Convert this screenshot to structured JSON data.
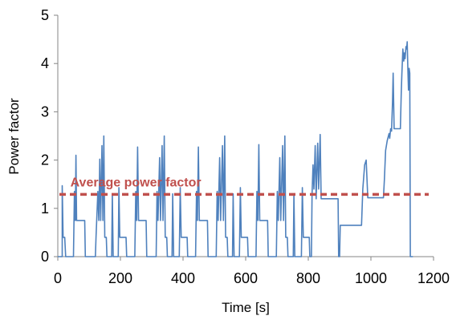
{
  "chart_data": {
    "type": "line",
    "title": "",
    "xlabel": "Time [s]",
    "ylabel": "Power factor",
    "xlim": [
      0,
      1200
    ],
    "ylim": [
      0,
      5
    ],
    "x_ticks": [
      0,
      200,
      400,
      600,
      800,
      1000,
      1200
    ],
    "y_ticks": [
      0,
      1,
      2,
      3,
      4,
      5
    ],
    "grid": false,
    "legend": "none",
    "colors": {
      "series": "#4f81bd",
      "average": "#c0504d"
    },
    "series": [
      {
        "points": [
          [
            0,
            0
          ],
          [
            14,
            0
          ],
          [
            14,
            1.47
          ],
          [
            17,
            0.4
          ],
          [
            22,
            0.4
          ],
          [
            25,
            0
          ],
          [
            50,
            0
          ],
          [
            53,
            1.35
          ],
          [
            56,
            0.75
          ],
          [
            58,
            2.1
          ],
          [
            60,
            0.75
          ],
          [
            86,
            0.75
          ],
          [
            88,
            0
          ],
          [
            120,
            0
          ],
          [
            122,
            0.4
          ],
          [
            128,
            1.35
          ],
          [
            131,
            0.75
          ],
          [
            134,
            2.02
          ],
          [
            137,
            0.75
          ],
          [
            141,
            2.3
          ],
          [
            144,
            0.75
          ],
          [
            147,
            2.5
          ],
          [
            150,
            0.4
          ],
          [
            155,
            0.4
          ],
          [
            157,
            0
          ],
          [
            172,
            0
          ],
          [
            174,
            1.3
          ],
          [
            177,
            0
          ],
          [
            193,
            0
          ],
          [
            195,
            1.43
          ],
          [
            198,
            0.4
          ],
          [
            218,
            0.4
          ],
          [
            220,
            0
          ],
          [
            246,
            0
          ],
          [
            249,
            1.35
          ],
          [
            252,
            0.75
          ],
          [
            255,
            2.27
          ],
          [
            258,
            0.75
          ],
          [
            282,
            0.75
          ],
          [
            284,
            0
          ],
          [
            314,
            0
          ],
          [
            317,
            1.35
          ],
          [
            320,
            0.75
          ],
          [
            325,
            2.05
          ],
          [
            328,
            0.75
          ],
          [
            333,
            2.3
          ],
          [
            336,
            0.75
          ],
          [
            340,
            2.5
          ],
          [
            343,
            0.4
          ],
          [
            348,
            0.4
          ],
          [
            350,
            0
          ],
          [
            365,
            0
          ],
          [
            367,
            1.3
          ],
          [
            370,
            0
          ],
          [
            388,
            0
          ],
          [
            391,
            1.43
          ],
          [
            394,
            0.4
          ],
          [
            413,
            0.4
          ],
          [
            415,
            0
          ],
          [
            440,
            0
          ],
          [
            443,
            1.35
          ],
          [
            446,
            0.75
          ],
          [
            449,
            2.27
          ],
          [
            452,
            0.75
          ],
          [
            478,
            0.75
          ],
          [
            480,
            0
          ],
          [
            506,
            0
          ],
          [
            509,
            1.35
          ],
          [
            512,
            0.75
          ],
          [
            517,
            2.05
          ],
          [
            520,
            0.75
          ],
          [
            526,
            2.3
          ],
          [
            529,
            0.75
          ],
          [
            533,
            2.5
          ],
          [
            536,
            0.4
          ],
          [
            541,
            0.4
          ],
          [
            543,
            0
          ],
          [
            558,
            0
          ],
          [
            560,
            1.3
          ],
          [
            563,
            0
          ],
          [
            580,
            0
          ],
          [
            583,
            1.43
          ],
          [
            586,
            0.4
          ],
          [
            606,
            0.4
          ],
          [
            608,
            0
          ],
          [
            633,
            0
          ],
          [
            636,
            1.35
          ],
          [
            639,
            0.75
          ],
          [
            642,
            2.32
          ],
          [
            645,
            0.75
          ],
          [
            670,
            0.75
          ],
          [
            672,
            0
          ],
          [
            698,
            0
          ],
          [
            701,
            1.35
          ],
          [
            704,
            0.75
          ],
          [
            709,
            2.05
          ],
          [
            712,
            0.75
          ],
          [
            718,
            2.3
          ],
          [
            721,
            0.75
          ],
          [
            725,
            2.5
          ],
          [
            728,
            0.4
          ],
          [
            733,
            0.4
          ],
          [
            735,
            0
          ],
          [
            752,
            0
          ],
          [
            754,
            1.3
          ],
          [
            757,
            0
          ],
          [
            778,
            0
          ],
          [
            781,
            1.43
          ],
          [
            784,
            0.4
          ],
          [
            803,
            0.4
          ],
          [
            805,
            0
          ],
          [
            810,
            0
          ],
          [
            812,
            1.3
          ],
          [
            815,
            1.9
          ],
          [
            818,
            1.4
          ],
          [
            822,
            2.3
          ],
          [
            825,
            1.2
          ],
          [
            830,
            2.35
          ],
          [
            833,
            1.4
          ],
          [
            838,
            2.53
          ],
          [
            841,
            1.2
          ],
          [
            895,
            1.2
          ],
          [
            897,
            0
          ],
          [
            900,
            0
          ],
          [
            902,
            0.65
          ],
          [
            970,
            0.65
          ],
          [
            974,
            1.4
          ],
          [
            980,
            1.9
          ],
          [
            985,
            2.0
          ],
          [
            990,
            1.22
          ],
          [
            1040,
            1.22
          ],
          [
            1043,
            1.6
          ],
          [
            1047,
            2.2
          ],
          [
            1052,
            2.4
          ],
          [
            1058,
            2.55
          ],
          [
            1060,
            2.45
          ],
          [
            1063,
            2.65
          ],
          [
            1066,
            2.6
          ],
          [
            1069,
            3.2
          ],
          [
            1071,
            3.8
          ],
          [
            1074,
            2.65
          ],
          [
            1094,
            2.65
          ],
          [
            1097,
            3.4
          ],
          [
            1099,
            3.8
          ],
          [
            1102,
            4.3
          ],
          [
            1105,
            4.05
          ],
          [
            1107,
            4.22
          ],
          [
            1109,
            4.1
          ],
          [
            1112,
            4.35
          ],
          [
            1114,
            4.3
          ],
          [
            1116,
            4.45
          ],
          [
            1118,
            3.9
          ],
          [
            1120,
            3.45
          ],
          [
            1122,
            3.9
          ],
          [
            1124,
            3.8
          ],
          [
            1126,
            0
          ],
          [
            1134,
            0
          ]
        ]
      },
      {
        "name": "Average power factor",
        "style": "dashed",
        "value": 1.29
      }
    ],
    "annotations": [
      {
        "text": "Average power factor",
        "x": 40,
        "y": 1.45
      }
    ]
  }
}
